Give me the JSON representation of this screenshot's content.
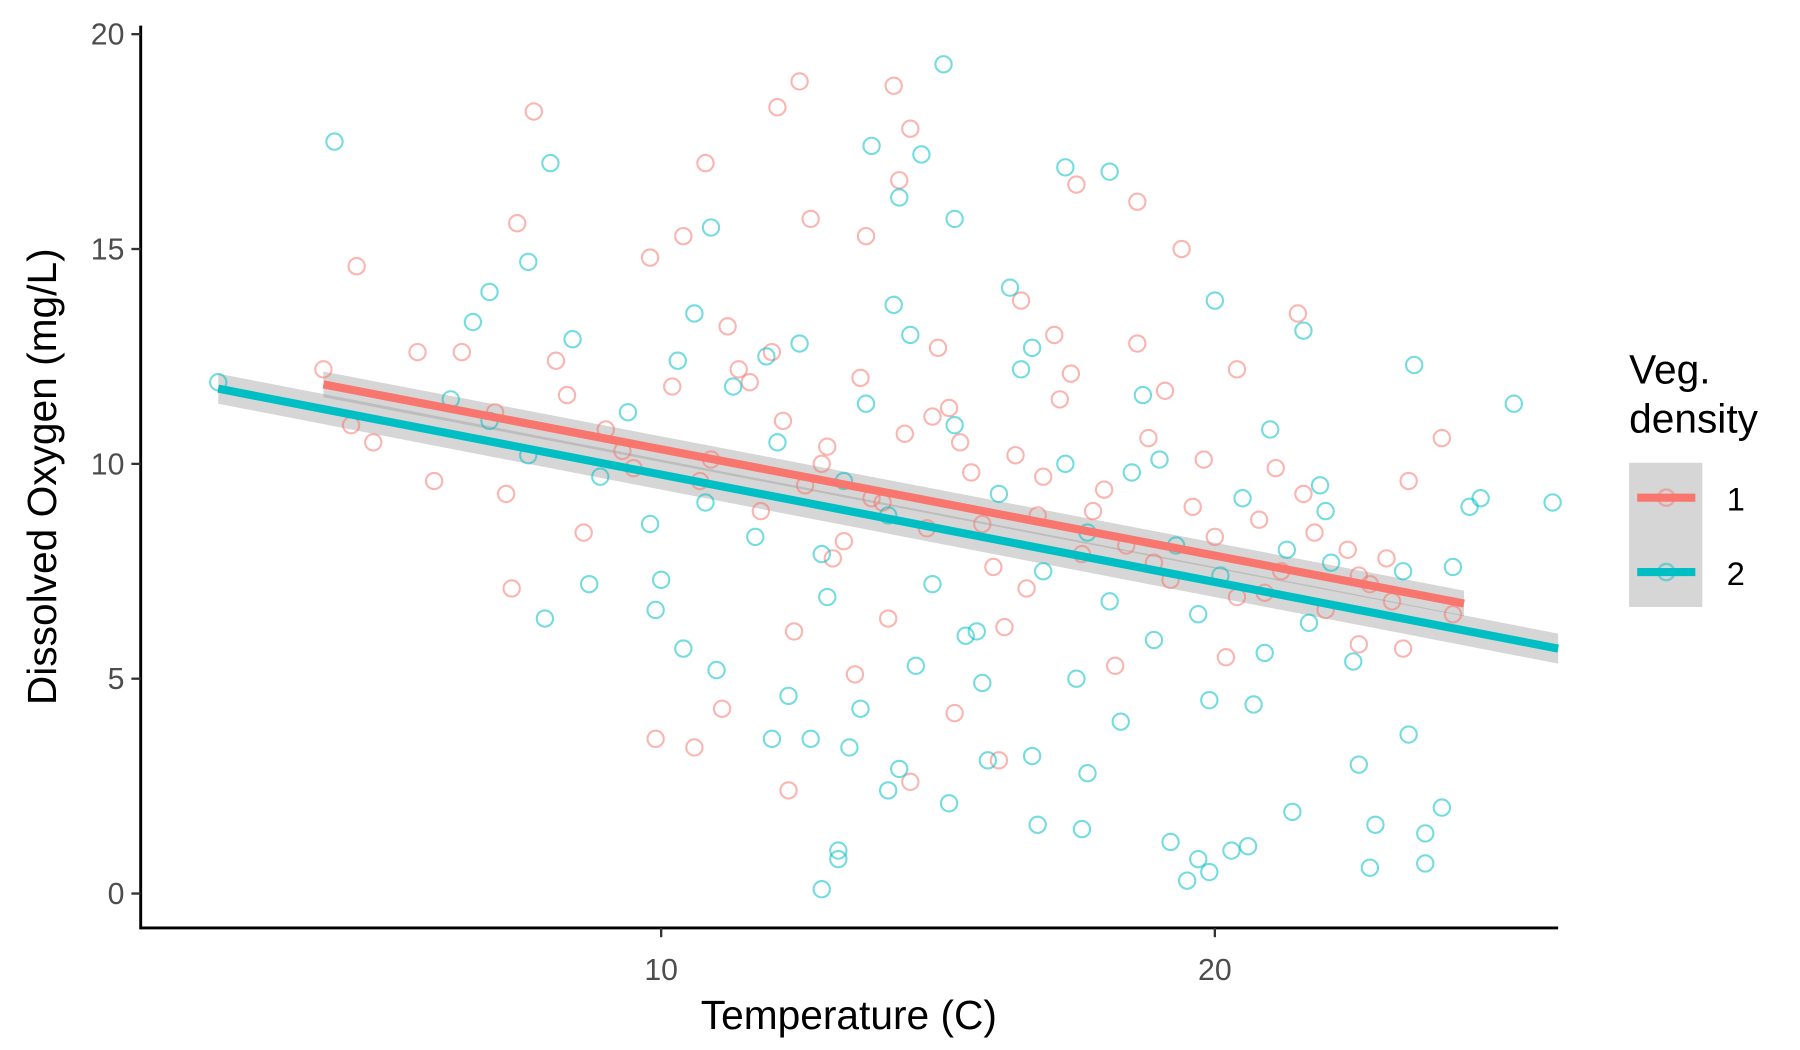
{
  "chart_data": {
    "type": "scatter",
    "title": "",
    "xlabel": "Temperature (C)",
    "ylabel": "Dissolved Oxygen (mg/L)",
    "xlim": [
      0.6,
      26.2
    ],
    "ylim": [
      -0.8,
      20.2
    ],
    "xticks": [
      10,
      20
    ],
    "yticks": [
      0,
      5,
      10,
      15,
      20
    ],
    "grid": false,
    "legend": {
      "title": "Veg.\ndensity",
      "title_lines": [
        "Veg.",
        "density"
      ],
      "placement": "right",
      "entries": [
        "1",
        "2"
      ]
    },
    "series": [
      {
        "name": "1",
        "color": "#F8766D",
        "marker": "open-circle",
        "fit": {
          "method": "linear",
          "x": [
            3.9,
            24.5
          ],
          "y": [
            11.85,
            6.75
          ],
          "ci_halfwidth": 0.3
        },
        "x": [
          4.5,
          7.7,
          12.5,
          14.2,
          12.1,
          10.8,
          14.5,
          14.3,
          18.6,
          17.5,
          7.4,
          9.8,
          10.4,
          12.7,
          13.7,
          19.4,
          3.9,
          5.6,
          6.4,
          4.8,
          5.9,
          7.3,
          9.9,
          10.6,
          12.3,
          11.1,
          12.4,
          15.3,
          16.1,
          14.5,
          21.5,
          20.4,
          23.5,
          24.1,
          24.3,
          22.6,
          23.4,
          23.1,
          18.6,
          16.5,
          4.4,
          7.0,
          7.2,
          8.3,
          8.6,
          9.0,
          9.5,
          10.2,
          10.9,
          11.4,
          11.8,
          12.2,
          12.6,
          13.0,
          13.3,
          13.6,
          14.0,
          14.4,
          14.8,
          15.2,
          15.6,
          16.0,
          16.4,
          16.8,
          17.2,
          17.6,
          18.0,
          18.4,
          18.8,
          19.2,
          19.6,
          20.0,
          20.4,
          20.8,
          21.2,
          21.6,
          22.0,
          22.4,
          22.8,
          23.2,
          8.1,
          9.3,
          10.7,
          11.6,
          12.9,
          13.8,
          14.9,
          15.8,
          16.9,
          17.8,
          18.9,
          19.8,
          20.9,
          21.8,
          22.6,
          11.2,
          12.0,
          13.1,
          14.1,
          15.0,
          16.2,
          17.1,
          18.2,
          19.1,
          20.2,
          21.1,
          15.4,
          16.6,
          17.4,
          13.5
        ],
        "y": [
          14.6,
          18.2,
          18.9,
          18.8,
          18.3,
          17.0,
          17.8,
          16.6,
          16.1,
          16.5,
          15.6,
          14.8,
          15.3,
          15.7,
          15.3,
          15.0,
          12.2,
          12.6,
          12.6,
          10.5,
          9.6,
          7.1,
          3.6,
          3.4,
          2.4,
          4.3,
          6.1,
          4.2,
          3.1,
          2.6,
          13.5,
          12.2,
          9.6,
          10.6,
          6.5,
          5.8,
          5.7,
          7.8,
          12.8,
          13.8,
          10.9,
          11.2,
          9.3,
          11.6,
          8.4,
          10.8,
          9.9,
          11.8,
          10.1,
          12.2,
          8.9,
          11.0,
          9.5,
          10.4,
          8.2,
          12.0,
          9.1,
          10.7,
          8.5,
          11.3,
          9.8,
          7.6,
          10.2,
          8.8,
          11.5,
          7.9,
          9.4,
          8.1,
          10.6,
          7.3,
          9.0,
          8.3,
          6.9,
          8.7,
          7.5,
          9.3,
          6.6,
          8.0,
          7.2,
          6.8,
          12.4,
          10.3,
          9.6,
          11.9,
          10.0,
          9.2,
          11.1,
          8.6,
          9.7,
          8.9,
          7.7,
          10.1,
          7.0,
          8.4,
          7.4,
          13.2,
          12.6,
          7.8,
          6.4,
          12.7,
          6.2,
          13.0,
          5.3,
          11.7,
          5.5,
          9.9,
          10.5,
          7.1,
          12.1,
          5.1
        ]
      },
      {
        "name": "2",
        "color": "#00BFC4",
        "marker": "open-circle",
        "fit": {
          "method": "linear",
          "x": [
            2.0,
            26.2
          ],
          "y": [
            11.75,
            5.7
          ],
          "ci_halfwidth": 0.35
        },
        "x": [
          4.1,
          8.0,
          15.1,
          13.8,
          14.7,
          17.3,
          18.1,
          10.9,
          15.3,
          14.3,
          7.6,
          6.9,
          2.0,
          6.6,
          20.0,
          21.6,
          23.6,
          25.4,
          26.1,
          24.8,
          24.6,
          24.3,
          23.4,
          23.5,
          24.1,
          23.8,
          23.8,
          22.8,
          22.9,
          22.6,
          19.5,
          12.9,
          13.2,
          13.2,
          16.8,
          17.6,
          19.2,
          19.7,
          20.6,
          21.4,
          19.9,
          20.3,
          10.4,
          11.0,
          9.9,
          10.0,
          7.9,
          8.7,
          13.4,
          12.0,
          12.7,
          14.1,
          15.2,
          15.9,
          14.3,
          16.7,
          17.7,
          6.2,
          6.9,
          7.6,
          8.4,
          8.9,
          9.4,
          9.8,
          10.3,
          10.8,
          11.3,
          11.7,
          12.1,
          12.5,
          12.9,
          13.3,
          13.7,
          14.1,
          14.5,
          14.9,
          15.3,
          15.7,
          16.1,
          16.5,
          16.9,
          17.3,
          17.7,
          18.1,
          18.5,
          18.9,
          19.3,
          19.7,
          20.1,
          20.5,
          20.9,
          21.3,
          21.7,
          22.1,
          22.5,
          10.6,
          11.9,
          13.0,
          14.2,
          15.5,
          16.3,
          17.5,
          18.7,
          19.9,
          21.0,
          22.0,
          14.6,
          15.8,
          16.7,
          18.3,
          19.0,
          20.7,
          21.9,
          12.3,
          13.6
        ],
        "y": [
          17.5,
          17.0,
          19.3,
          17.4,
          17.2,
          16.9,
          16.8,
          15.5,
          15.7,
          16.2,
          14.7,
          14.0,
          11.9,
          13.3,
          13.8,
          13.1,
          12.3,
          11.4,
          9.1,
          9.2,
          9.0,
          7.6,
          7.5,
          3.7,
          2.0,
          1.4,
          0.7,
          0.6,
          1.6,
          3.0,
          0.3,
          0.1,
          0.8,
          1.0,
          1.6,
          1.5,
          1.2,
          0.8,
          1.1,
          1.9,
          0.5,
          1.0,
          5.7,
          5.2,
          6.6,
          7.3,
          6.4,
          7.2,
          3.4,
          3.6,
          3.6,
          2.4,
          2.1,
          3.1,
          2.9,
          3.2,
          2.8,
          11.5,
          11.0,
          10.2,
          12.9,
          9.7,
          11.2,
          8.6,
          12.4,
          9.1,
          11.8,
          8.3,
          10.5,
          12.8,
          7.9,
          9.6,
          11.4,
          8.8,
          13.0,
          7.2,
          10.9,
          6.1,
          9.3,
          12.2,
          7.5,
          10.0,
          8.4,
          6.8,
          9.8,
          5.9,
          8.1,
          6.5,
          7.4,
          9.2,
          5.6,
          8.0,
          6.3,
          7.7,
          5.4,
          13.5,
          12.5,
          6.9,
          13.7,
          6.0,
          14.1,
          5.0,
          11.6,
          4.5,
          10.8,
          8.9,
          5.3,
          4.9,
          12.7,
          4.0,
          10.1,
          4.4,
          9.5,
          4.6,
          4.3
        ]
      }
    ]
  }
}
